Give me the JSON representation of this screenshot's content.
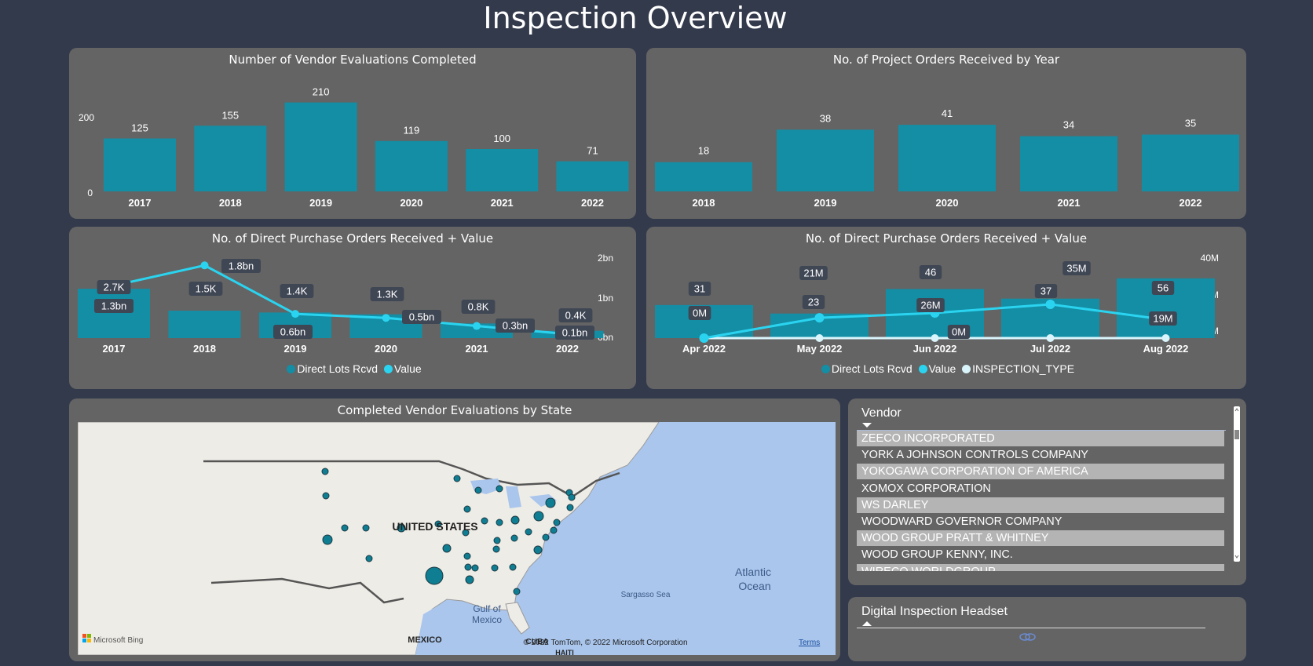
{
  "page_title": "Inspection Overview",
  "colors": {
    "bar": "#138ea5",
    "line": "#2ad4f0",
    "line2": "#d9f4fa",
    "panel": "#646464",
    "background": "#333a4c",
    "label_bg": "#3f4654"
  },
  "charts": {
    "vendor_evals": {
      "title": "Number of Vendor Evaluations Completed",
      "y_ticks": [
        "200",
        "0"
      ]
    },
    "project_orders": {
      "title": "No. of Project Orders Received by Year"
    },
    "dpo_year": {
      "title": "No. of Direct Purchase Orders Received + Value",
      "right_ticks": [
        "2bn",
        "1bn",
        "0bn"
      ],
      "legend": [
        "Direct Lots Rcvd",
        "Value"
      ]
    },
    "dpo_month": {
      "title": "No. of Direct Purchase Orders Received + Value",
      "right_ticks": [
        "40M",
        "20M",
        "0M"
      ],
      "legend": [
        "Direct Lots Rcvd",
        "Value",
        "INSPECTION_TYPE"
      ]
    }
  },
  "chart_data": [
    {
      "type": "bar",
      "title": "Number of Vendor Evaluations Completed",
      "categories": [
        "2017",
        "2018",
        "2019",
        "2020",
        "2021",
        "2022"
      ],
      "values": [
        125,
        155,
        210,
        119,
        100,
        71
      ],
      "ylim": [
        0,
        240
      ]
    },
    {
      "type": "bar",
      "title": "No. of Project Orders Received by Year",
      "categories": [
        "2018",
        "2019",
        "2020",
        "2021",
        "2022"
      ],
      "values": [
        18,
        38,
        41,
        34,
        35
      ],
      "ylim": [
        0,
        46
      ]
    },
    {
      "type": "bar",
      "title": "No. of Direct Purchase Orders Received + Value",
      "categories": [
        "2017",
        "2018",
        "2019",
        "2020",
        "2021",
        "2022"
      ],
      "series": [
        {
          "name": "Direct Lots Rcvd",
          "type": "bar",
          "values": [
            2700,
            1500,
            1400,
            1300,
            800,
            400
          ],
          "labels": [
            "2.7K",
            "1.5K",
            "1.4K",
            "1.3K",
            "0.8K",
            "0.4K"
          ]
        },
        {
          "name": "Value",
          "type": "line",
          "values": [
            1.3,
            1.8,
            0.6,
            0.5,
            0.3,
            0.1
          ],
          "labels": [
            "1.3bn",
            "1.8bn",
            "0.6bn",
            "0.5bn",
            "0.3bn",
            "0.1bn"
          ]
        }
      ],
      "ylim_right": [
        0,
        2
      ]
    },
    {
      "type": "bar",
      "title": "No. of Direct Purchase Orders Received + Value",
      "categories": [
        "Apr 2022",
        "May 2022",
        "Jun 2022",
        "Jul 2022",
        "Aug 2022"
      ],
      "series": [
        {
          "name": "Direct Lots Rcvd",
          "type": "bar",
          "values": [
            31,
            23,
            46,
            37,
            56
          ],
          "labels": [
            "31",
            "23",
            "46",
            "37",
            "56"
          ]
        },
        {
          "name": "Value",
          "type": "line",
          "values": [
            0,
            21,
            26,
            35,
            19
          ],
          "labels": [
            "0M",
            "21M",
            "26M",
            "35M",
            "19M"
          ]
        },
        {
          "name": "INSPECTION_TYPE",
          "type": "line",
          "values": [
            0,
            0,
            0,
            0,
            0
          ],
          "labels": [
            "0M",
            "0M",
            "0M",
            "0M",
            "0M"
          ]
        }
      ],
      "ylim_right": [
        0,
        40
      ]
    }
  ],
  "map": {
    "title": "Completed Vendor Evaluations by State",
    "country_label": "UNITED STATES",
    "ocean_label_1": "Atlantic",
    "ocean_label_2": "Ocean",
    "sargasso": "Sargasso Sea",
    "gulf_1": "Gulf of",
    "gulf_2": "Mexico",
    "mexico": "MEXICO",
    "cuba": "CUBA",
    "haiti": "HAITI",
    "bing": "Microsoft Bing",
    "copyright": "© 2022 TomTom, © 2022 Microsoft Corporation",
    "terms": "Terms"
  },
  "vendor_slicer": {
    "header": "Vendor",
    "items": [
      "ZEECO INCORPORATED",
      "YORK A JOHNSON CONTROLS COMPANY",
      "YOKOGAWA CORPORATION OF AMERICA",
      "XOMOX CORPORATION",
      "WS DARLEY",
      "WOODWARD GOVERNOR COMPANY",
      "WOOD GROUP PRATT & WHITNEY",
      "WOOD GROUP KENNY, INC.",
      "WIRECO WORLDGROUP"
    ]
  },
  "headset_slicer": {
    "header": "Digital Inspection Headset"
  }
}
